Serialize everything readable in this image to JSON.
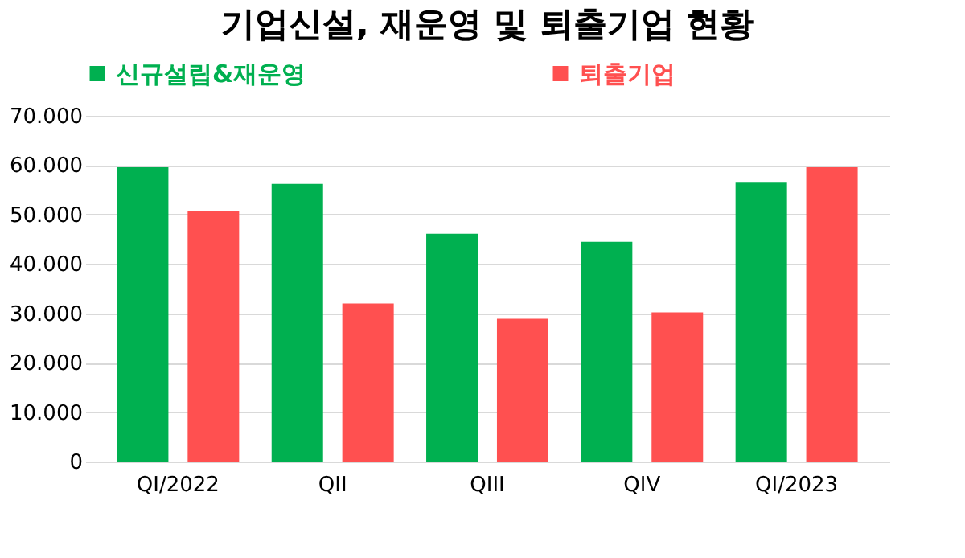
{
  "chart_data": {
    "type": "bar",
    "title": "기업신설, 재운영 및 퇴출기업 현황",
    "categories": [
      "QI/2022",
      "QII",
      "QIII",
      "QIV",
      "QI/2023"
    ],
    "series": [
      {
        "name": "신규설립&재운영",
        "color": "#00b050",
        "values": [
          59600,
          56200,
          46100,
          44500,
          56600
        ]
      },
      {
        "name": "퇴출기업",
        "color": "#ff5050",
        "values": [
          50700,
          32000,
          28900,
          30200,
          59600
        ]
      }
    ],
    "ylim": [
      0,
      70000
    ],
    "yticks": [
      0,
      {
        "value": 10000,
        "label": "10.000"
      },
      {
        "value": 20000,
        "label": "20.000"
      },
      {
        "value": 30000,
        "label": "30.000"
      },
      {
        "value": 40000,
        "label": "40.000"
      },
      {
        "value": 50000,
        "label": "50.000"
      },
      {
        "value": 60000,
        "label": "60.000"
      },
      {
        "value": 70000,
        "label": "70.000"
      }
    ],
    "grid": "y",
    "legend": "top"
  }
}
